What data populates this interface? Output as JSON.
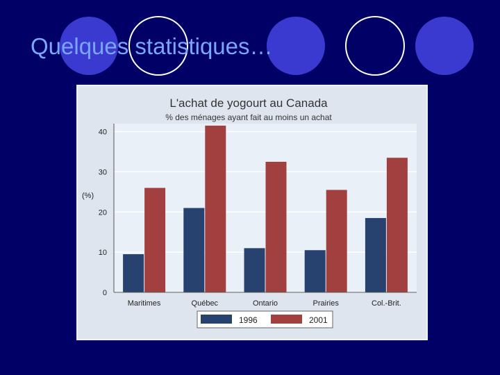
{
  "slide": {
    "title": "Quelques statistiques…"
  },
  "colors": {
    "background": "#000066",
    "title": "#7aa6ff",
    "circle_fill": "#3a3ad0",
    "circle_stroke": "#ffffff",
    "series_1996": "#27426e",
    "series_2001": "#a23f3f"
  },
  "chart_data": {
    "type": "bar",
    "title": "L'achat de yogourt au Canada",
    "subtitle": "% des ménages ayant fait au moins un achat",
    "ylabel": "(%)",
    "xlabel": "",
    "categories": [
      "Maritimes",
      "Québec",
      "Ontario",
      "Prairies",
      "Col.-Brit."
    ],
    "series": [
      {
        "name": "1996",
        "values": [
          9.5,
          21,
          11,
          10.5,
          18.5
        ]
      },
      {
        "name": "2001",
        "values": [
          26,
          41.5,
          32.5,
          25.5,
          33.5
        ]
      }
    ],
    "ylim": [
      0,
      42
    ],
    "yticks": [
      0,
      10,
      20,
      30,
      40
    ],
    "grid": true,
    "legend": "bottom"
  }
}
